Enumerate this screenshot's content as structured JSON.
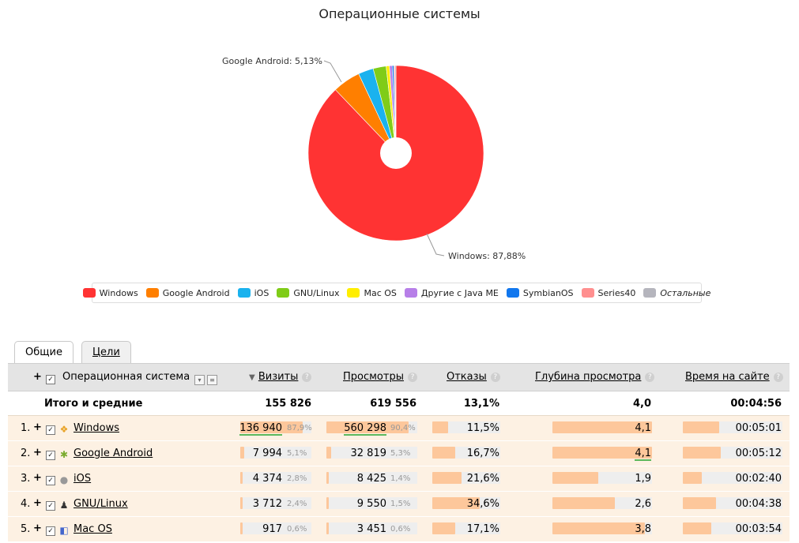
{
  "chart_data": {
    "type": "pie",
    "title": "Операционные системы",
    "slices": [
      {
        "label": "Windows",
        "value": 87.88,
        "color": "#ff3333"
      },
      {
        "label": "Google Android",
        "value": 5.13,
        "color": "#ff7f00"
      },
      {
        "label": "iOS",
        "value": 2.8,
        "color": "#1ab2ee"
      },
      {
        "label": "GNU/Linux",
        "value": 2.4,
        "color": "#7fcc18"
      },
      {
        "label": "Mac OS",
        "value": 0.6,
        "color": "#ffee00"
      },
      {
        "label": "Другие с Java ME",
        "value": 0.5,
        "color": "#b77fe8"
      },
      {
        "label": "SymbianOS",
        "value": 0.3,
        "color": "#1177ee"
      },
      {
        "label": "Series40",
        "value": 0.2,
        "color": "#ff8f8f"
      },
      {
        "label": "Остальные",
        "value": 0.19,
        "color": "#b5b5bd"
      }
    ],
    "callouts": [
      {
        "text": "Google Android: 5,13%"
      },
      {
        "text": "Windows: 87,88%"
      }
    ],
    "legend": {
      "position": "bottom",
      "items": [
        "Windows",
        "Google Android",
        "iOS",
        "GNU/Linux",
        "Mac OS",
        "Другие с Java ME",
        "SymbianOS",
        "Series40",
        "Остальные"
      ]
    }
  },
  "tabs": [
    {
      "label": "Общие",
      "active": true
    },
    {
      "label": "Цели",
      "active": false
    }
  ],
  "table": {
    "headers": {
      "plus": "+",
      "check": "✓",
      "os": "Операционная система",
      "visits_arrow": "▼",
      "visits": "Визиты",
      "views": "Просмотры",
      "bounces": "Отказы",
      "depth": "Глубина просмотра",
      "time": "Время на сайте",
      "help": "?"
    },
    "total": {
      "label": "Итого и средние",
      "visits": "155 826",
      "views": "619 556",
      "bounces": "13,1%",
      "depth": "4,0",
      "time": "00:04:56"
    },
    "rows": [
      {
        "num": "1.",
        "plus": "+",
        "check": "✓",
        "icon": "windows-icon",
        "icon_glyph": "❖",
        "icon_color": "#e8a020",
        "name": "Windows",
        "visits": "136 940",
        "visits_pct": "87,9%",
        "visits_share": 0.879,
        "views": "560 298",
        "views_pct": "90,4%",
        "views_share": 0.904,
        "bounces": "11,5%",
        "bounces_share": 0.115,
        "depth": "4,1",
        "depth_share": 1.0,
        "time": "00:05:01",
        "time_share": 0.59
      },
      {
        "num": "2.",
        "plus": "+",
        "check": "✓",
        "icon": "android-icon",
        "icon_glyph": "✱",
        "icon_color": "#7aab2e",
        "name": "Google Android",
        "visits": "7 994",
        "visits_pct": "5,1%",
        "visits_share": 0.051,
        "views": "32 819",
        "views_pct": "5,3%",
        "views_share": 0.053,
        "bounces": "16,7%",
        "bounces_share": 0.167,
        "depth": "4,1",
        "depth_share": 1.0,
        "time": "00:05:12",
        "time_share": 0.61
      },
      {
        "num": "3.",
        "plus": "+",
        "check": "✓",
        "icon": "apple-icon",
        "icon_glyph": "●",
        "icon_color": "#999999",
        "name": "iOS",
        "visits": "4 374",
        "visits_pct": "2,8%",
        "visits_share": 0.028,
        "views": "8 425",
        "views_pct": "1,4%",
        "views_share": 0.014,
        "bounces": "21,6%",
        "bounces_share": 0.216,
        "depth": "1,9",
        "depth_share": 0.46,
        "time": "00:02:40",
        "time_share": 0.31
      },
      {
        "num": "4.",
        "plus": "+",
        "check": "✓",
        "icon": "linux-icon",
        "icon_glyph": "♟",
        "icon_color": "#333333",
        "name": "GNU/Linux",
        "visits": "3 712",
        "visits_pct": "2,4%",
        "visits_share": 0.024,
        "views": "9 550",
        "views_pct": "1,5%",
        "views_share": 0.015,
        "bounces": "34,6%",
        "bounces_share": 0.346,
        "depth": "2,6",
        "depth_share": 0.63,
        "time": "00:04:38",
        "time_share": 0.54
      },
      {
        "num": "5.",
        "plus": "+",
        "check": "✓",
        "icon": "mac-icon",
        "icon_glyph": "◧",
        "icon_color": "#4466cc",
        "name": "Mac OS",
        "visits": "917",
        "visits_pct": "0,6%",
        "visits_share": 0.006,
        "views": "3 451",
        "views_pct": "0,6%",
        "views_share": 0.006,
        "bounces": "17,1%",
        "bounces_share": 0.171,
        "depth": "3,8",
        "depth_share": 0.93,
        "time": "00:03:54",
        "time_share": 0.46
      }
    ]
  }
}
